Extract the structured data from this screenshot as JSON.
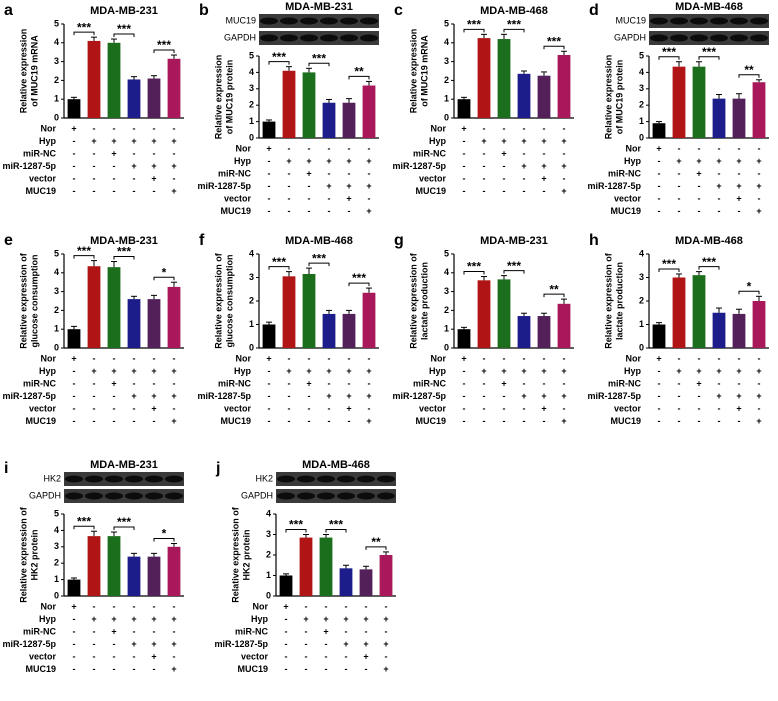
{
  "chart_data": [
    {
      "type": "bar",
      "label": "a",
      "title": "MDA-MB-231",
      "ylabel": [
        "Relative expression",
        "of MUC19 mRNA"
      ],
      "values": [
        1,
        4.1,
        4.0,
        2.05,
        2.1,
        3.15
      ],
      "errors": [
        0.1,
        0.2,
        0.2,
        0.15,
        0.15,
        0.2
      ],
      "colors": [
        "#000000",
        "#b01414",
        "#1b6e1b",
        "#1c1c8a",
        "#53205a",
        "#a8185a"
      ],
      "ylim": [
        0,
        5
      ],
      "yticks": [
        0,
        1,
        2,
        3,
        4,
        5
      ],
      "significance": [
        "***",
        "***",
        "***"
      ]
    },
    {
      "type": "bar",
      "label": "b",
      "title": "MDA-MB-231",
      "blot": [
        "MUC19",
        "GAPDH"
      ],
      "ylabel": [
        "Relative expression",
        "of MUC19 protein"
      ],
      "values": [
        1,
        4.1,
        4.0,
        2.15,
        2.15,
        3.2
      ],
      "errors": [
        0.1,
        0.25,
        0.25,
        0.2,
        0.25,
        0.25
      ],
      "colors": [
        "#000000",
        "#b01414",
        "#1b6e1b",
        "#1c1c8a",
        "#53205a",
        "#a8185a"
      ],
      "ylim": [
        0,
        5
      ],
      "yticks": [
        0,
        1,
        2,
        3,
        4,
        5
      ],
      "significance": [
        "***",
        "***",
        "**"
      ]
    },
    {
      "type": "bar",
      "label": "c",
      "title": "MDA-MB-468",
      "ylabel": [
        "Relative expression",
        "of MUC19 mRNA"
      ],
      "values": [
        1,
        4.25,
        4.2,
        2.35,
        2.25,
        3.35
      ],
      "errors": [
        0.1,
        0.2,
        0.25,
        0.15,
        0.2,
        0.2
      ],
      "colors": [
        "#000000",
        "#b01414",
        "#1b6e1b",
        "#1c1c8a",
        "#53205a",
        "#a8185a"
      ],
      "ylim": [
        0,
        5
      ],
      "yticks": [
        0,
        1,
        2,
        3,
        4,
        5
      ],
      "significance": [
        "***",
        "***",
        "***"
      ]
    },
    {
      "type": "bar",
      "label": "d",
      "title": "MDA-MB-468",
      "blot": [
        "MUC19",
        "GAPDH"
      ],
      "ylabel": [
        "Relative expression",
        "of MUC19 protein"
      ],
      "values": [
        0.9,
        4.35,
        4.35,
        2.4,
        2.4,
        3.4
      ],
      "errors": [
        0.1,
        0.3,
        0.3,
        0.25,
        0.3,
        0.15
      ],
      "colors": [
        "#000000",
        "#b01414",
        "#1b6e1b",
        "#1c1c8a",
        "#53205a",
        "#a8185a"
      ],
      "ylim": [
        0,
        5
      ],
      "yticks": [
        0,
        1,
        2,
        3,
        4,
        5
      ],
      "significance": [
        "***",
        "***",
        "**"
      ]
    },
    {
      "type": "bar",
      "label": "e",
      "title": "MDA-MB-231",
      "ylabel": [
        "Relative expression of",
        "glucose consumption"
      ],
      "values": [
        1,
        4.35,
        4.3,
        2.6,
        2.6,
        3.25
      ],
      "errors": [
        0.15,
        0.3,
        0.3,
        0.15,
        0.2,
        0.25
      ],
      "colors": [
        "#000000",
        "#b01414",
        "#1b6e1b",
        "#1c1c8a",
        "#53205a",
        "#a8185a"
      ],
      "ylim": [
        0,
        5
      ],
      "yticks": [
        0,
        1,
        2,
        3,
        4,
        5
      ],
      "significance": [
        "***",
        "***",
        "*"
      ]
    },
    {
      "type": "bar",
      "label": "f",
      "title": "MDA-MB-468",
      "ylabel": [
        "Relative expression of",
        "glucose consumption"
      ],
      "values": [
        1,
        3.05,
        3.15,
        1.45,
        1.45,
        2.35
      ],
      "errors": [
        0.1,
        0.2,
        0.25,
        0.15,
        0.15,
        0.2
      ],
      "colors": [
        "#000000",
        "#b01414",
        "#1b6e1b",
        "#1c1c8a",
        "#53205a",
        "#a8185a"
      ],
      "ylim": [
        0,
        4
      ],
      "yticks": [
        0,
        1,
        2,
        3,
        4
      ],
      "significance": [
        "***",
        "***",
        "***"
      ]
    },
    {
      "type": "bar",
      "label": "g",
      "title": "MDA-MB-231",
      "ylabel": [
        "Relative expression of",
        "lactate production"
      ],
      "values": [
        1,
        3.6,
        3.65,
        1.7,
        1.7,
        2.35
      ],
      "errors": [
        0.1,
        0.2,
        0.2,
        0.15,
        0.15,
        0.25
      ],
      "colors": [
        "#000000",
        "#b01414",
        "#1b6e1b",
        "#1c1c8a",
        "#53205a",
        "#a8185a"
      ],
      "ylim": [
        0,
        5
      ],
      "yticks": [
        0,
        1,
        2,
        3,
        4,
        5
      ],
      "significance": [
        "***",
        "***",
        "**"
      ]
    },
    {
      "type": "bar",
      "label": "h",
      "title": "MDA-MB-468",
      "ylabel": [
        "Relative expression of",
        "lactate production"
      ],
      "values": [
        1,
        3.0,
        3.1,
        1.5,
        1.45,
        2.0
      ],
      "errors": [
        0.08,
        0.15,
        0.15,
        0.2,
        0.2,
        0.2
      ],
      "colors": [
        "#000000",
        "#b01414",
        "#1b6e1b",
        "#1c1c8a",
        "#53205a",
        "#a8185a"
      ],
      "ylim": [
        0,
        4
      ],
      "yticks": [
        0,
        1,
        2,
        3,
        4
      ],
      "significance": [
        "***",
        "***",
        "*"
      ]
    },
    {
      "type": "bar",
      "label": "i",
      "title": "MDA-MB-231",
      "blot": [
        "HK2",
        "GAPDH"
      ],
      "ylabel": [
        "Relative expression of",
        "HK2 protein"
      ],
      "values": [
        1,
        3.65,
        3.65,
        2.4,
        2.4,
        3.0
      ],
      "errors": [
        0.1,
        0.3,
        0.25,
        0.2,
        0.2,
        0.2
      ],
      "colors": [
        "#000000",
        "#b01414",
        "#1b6e1b",
        "#1c1c8a",
        "#53205a",
        "#a8185a"
      ],
      "ylim": [
        0,
        5
      ],
      "yticks": [
        0,
        1,
        2,
        3,
        4,
        5
      ],
      "significance": [
        "***",
        "***",
        "*"
      ]
    },
    {
      "type": "bar",
      "label": "j",
      "title": "MDA-MB-468",
      "blot": [
        "HK2",
        "GAPDH"
      ],
      "ylabel": [
        "Relative expression of",
        "HK2 protein"
      ],
      "values": [
        1,
        2.85,
        2.85,
        1.35,
        1.3,
        2.0
      ],
      "errors": [
        0.08,
        0.15,
        0.15,
        0.15,
        0.15,
        0.15
      ],
      "colors": [
        "#000000",
        "#b01414",
        "#1b6e1b",
        "#1c1c8a",
        "#53205a",
        "#a8185a"
      ],
      "ylim": [
        0,
        4
      ],
      "yticks": [
        0,
        1,
        2,
        3,
        4
      ],
      "significance": [
        "***",
        "***",
        "**"
      ]
    }
  ],
  "conditions": {
    "labels": [
      "Nor",
      "Hyp",
      "miR-NC",
      "miR-1287-5p",
      "vector",
      "MUC19"
    ],
    "signs": [
      [
        "+",
        "-",
        "-",
        "-",
        "-",
        "-"
      ],
      [
        "-",
        "+",
        "+",
        "+",
        "+",
        "+"
      ],
      [
        "-",
        "-",
        "+",
        "-",
        "-",
        "-"
      ],
      [
        "-",
        "-",
        "-",
        "+",
        "+",
        "+"
      ],
      [
        "-",
        "-",
        "-",
        "-",
        "+",
        "-"
      ],
      [
        "-",
        "-",
        "-",
        "-",
        "-",
        "+"
      ]
    ]
  }
}
